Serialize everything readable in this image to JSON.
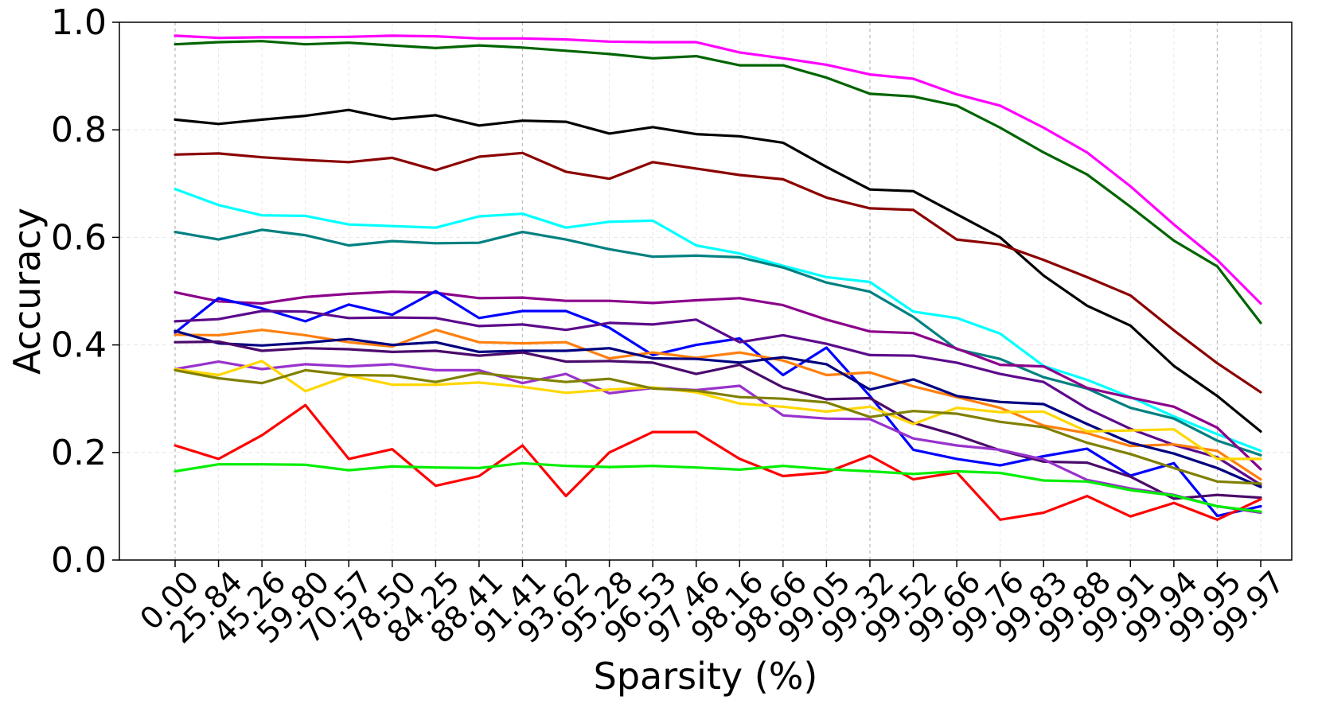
{
  "chart_data": {
    "type": "line",
    "title": "",
    "xlabel": "Sparsity (%)",
    "ylabel": "Accuracy",
    "ylim": [
      0,
      1
    ],
    "yticks": [
      "0.0",
      "0.2",
      "0.4",
      "0.6",
      "0.8",
      "1.0"
    ],
    "categories": [
      "0.00",
      "25.84",
      "45.26",
      "59.80",
      "70.57",
      "78.50",
      "84.25",
      "88.41",
      "91.41",
      "93.62",
      "95.28",
      "96.53",
      "97.46",
      "98.16",
      "98.66",
      "99.05",
      "99.32",
      "99.52",
      "99.66",
      "99.76",
      "99.83",
      "99.88",
      "99.91",
      "99.94",
      "99.95",
      "99.97"
    ],
    "grid": true,
    "legend": "none",
    "series": [
      {
        "color": "#ff00ff",
        "values": [
          0.975,
          0.971,
          0.972,
          0.972,
          0.973,
          0.975,
          0.974,
          0.97,
          0.97,
          0.968,
          0.964,
          0.963,
          0.963,
          0.944,
          0.933,
          0.921,
          0.903,
          0.895,
          0.866,
          0.845,
          0.804,
          0.758,
          0.695,
          0.624,
          0.558,
          0.477
        ]
      },
      {
        "color": "#006400",
        "values": [
          0.959,
          0.963,
          0.965,
          0.959,
          0.962,
          0.957,
          0.952,
          0.957,
          0.953,
          0.947,
          0.941,
          0.933,
          0.937,
          0.92,
          0.92,
          0.897,
          0.867,
          0.862,
          0.845,
          0.804,
          0.758,
          0.717,
          0.657,
          0.594,
          0.546,
          0.441
        ]
      },
      {
        "color": "#000000",
        "values": [
          0.819,
          0.811,
          0.819,
          0.826,
          0.837,
          0.82,
          0.827,
          0.808,
          0.817,
          0.815,
          0.793,
          0.805,
          0.792,
          0.788,
          0.776,
          0.731,
          0.689,
          0.686,
          0.643,
          0.6,
          0.529,
          0.473,
          0.436,
          0.361,
          0.305,
          0.239
        ]
      },
      {
        "color": "#8b0000",
        "values": [
          0.754,
          0.756,
          0.749,
          0.744,
          0.74,
          0.748,
          0.725,
          0.75,
          0.757,
          0.722,
          0.709,
          0.74,
          0.728,
          0.716,
          0.708,
          0.674,
          0.654,
          0.651,
          0.596,
          0.587,
          0.558,
          0.526,
          0.492,
          0.427,
          0.366,
          0.312
        ]
      },
      {
        "color": "#00ffff",
        "values": [
          0.69,
          0.66,
          0.641,
          0.64,
          0.624,
          0.621,
          0.618,
          0.639,
          0.644,
          0.618,
          0.629,
          0.631,
          0.585,
          0.57,
          0.547,
          0.526,
          0.517,
          0.462,
          0.45,
          0.421,
          0.361,
          0.335,
          0.303,
          0.267,
          0.234,
          0.203
        ]
      },
      {
        "color": "#008080",
        "values": [
          0.61,
          0.596,
          0.614,
          0.604,
          0.585,
          0.593,
          0.589,
          0.59,
          0.61,
          0.596,
          0.578,
          0.564,
          0.566,
          0.563,
          0.544,
          0.516,
          0.499,
          0.452,
          0.392,
          0.374,
          0.34,
          0.319,
          0.283,
          0.263,
          0.222,
          0.195
        ]
      },
      {
        "color": "#8b008b",
        "values": [
          0.498,
          0.481,
          0.477,
          0.489,
          0.495,
          0.499,
          0.497,
          0.487,
          0.488,
          0.482,
          0.482,
          0.478,
          0.483,
          0.487,
          0.474,
          0.447,
          0.425,
          0.422,
          0.393,
          0.363,
          0.36,
          0.32,
          0.302,
          0.285,
          0.246,
          0.169
        ]
      },
      {
        "color": "#0000ff",
        "values": [
          0.423,
          0.487,
          0.468,
          0.444,
          0.475,
          0.456,
          0.5,
          0.45,
          0.463,
          0.463,
          0.432,
          0.381,
          0.4,
          0.412,
          0.344,
          0.395,
          0.305,
          0.205,
          0.188,
          0.176,
          0.193,
          0.207,
          0.157,
          0.18,
          0.082,
          0.1
        ]
      },
      {
        "color": "#5c0a8b",
        "values": [
          0.444,
          0.448,
          0.463,
          0.462,
          0.45,
          0.451,
          0.45,
          0.435,
          0.438,
          0.428,
          0.441,
          0.438,
          0.447,
          0.405,
          0.418,
          0.402,
          0.381,
          0.38,
          0.367,
          0.346,
          0.331,
          0.282,
          0.244,
          0.214,
          0.191,
          0.14
        ]
      },
      {
        "color": "#ff7f0e",
        "values": [
          0.419,
          0.418,
          0.428,
          0.418,
          0.405,
          0.397,
          0.428,
          0.405,
          0.403,
          0.405,
          0.375,
          0.386,
          0.376,
          0.386,
          0.371,
          0.344,
          0.349,
          0.323,
          0.303,
          0.283,
          0.25,
          0.236,
          0.212,
          0.215,
          0.203,
          0.15
        ]
      },
      {
        "color": "#000080",
        "values": [
          0.426,
          0.403,
          0.399,
          0.404,
          0.411,
          0.4,
          0.405,
          0.387,
          0.389,
          0.389,
          0.394,
          0.375,
          0.374,
          0.367,
          0.377,
          0.364,
          0.317,
          0.336,
          0.305,
          0.294,
          0.29,
          0.253,
          0.218,
          0.198,
          0.171,
          0.136
        ]
      },
      {
        "color": "#4b0a6b",
        "values": [
          0.405,
          0.406,
          0.389,
          0.394,
          0.392,
          0.387,
          0.389,
          0.38,
          0.386,
          0.369,
          0.37,
          0.367,
          0.346,
          0.363,
          0.321,
          0.299,
          0.301,
          0.255,
          0.232,
          0.204,
          0.183,
          0.181,
          0.155,
          0.114,
          0.121,
          0.116
        ]
      },
      {
        "color": "#9932cc",
        "values": [
          0.355,
          0.369,
          0.355,
          0.364,
          0.36,
          0.364,
          0.353,
          0.353,
          0.329,
          0.346,
          0.31,
          0.32,
          0.316,
          0.324,
          0.269,
          0.263,
          0.262,
          0.226,
          0.213,
          0.205,
          0.187,
          0.149,
          0.133,
          0.121,
          0.1,
          0.088
        ]
      },
      {
        "color": "#ffd700",
        "values": [
          0.355,
          0.344,
          0.37,
          0.314,
          0.343,
          0.326,
          0.326,
          0.33,
          0.322,
          0.311,
          0.317,
          0.321,
          0.312,
          0.291,
          0.285,
          0.276,
          0.285,
          0.253,
          0.283,
          0.275,
          0.276,
          0.239,
          0.241,
          0.243,
          0.188,
          0.188
        ]
      },
      {
        "color": "#808000",
        "values": [
          0.353,
          0.338,
          0.329,
          0.353,
          0.344,
          0.343,
          0.331,
          0.348,
          0.339,
          0.331,
          0.337,
          0.319,
          0.315,
          0.303,
          0.3,
          0.293,
          0.266,
          0.277,
          0.272,
          0.257,
          0.247,
          0.218,
          0.197,
          0.171,
          0.146,
          0.142
        ]
      },
      {
        "color": "#ff0000",
        "values": [
          0.213,
          0.188,
          0.232,
          0.288,
          0.188,
          0.206,
          0.138,
          0.156,
          0.213,
          0.119,
          0.2,
          0.238,
          0.238,
          0.188,
          0.156,
          0.163,
          0.194,
          0.15,
          0.163,
          0.075,
          0.088,
          0.119,
          0.081,
          0.106,
          0.075,
          0.113
        ]
      },
      {
        "color": "#00ee00",
        "values": [
          0.165,
          0.178,
          0.178,
          0.177,
          0.167,
          0.174,
          0.172,
          0.171,
          0.18,
          0.175,
          0.173,
          0.175,
          0.172,
          0.168,
          0.175,
          0.169,
          0.165,
          0.16,
          0.165,
          0.162,
          0.148,
          0.146,
          0.13,
          0.12,
          0.1,
          0.09
        ]
      }
    ]
  }
}
